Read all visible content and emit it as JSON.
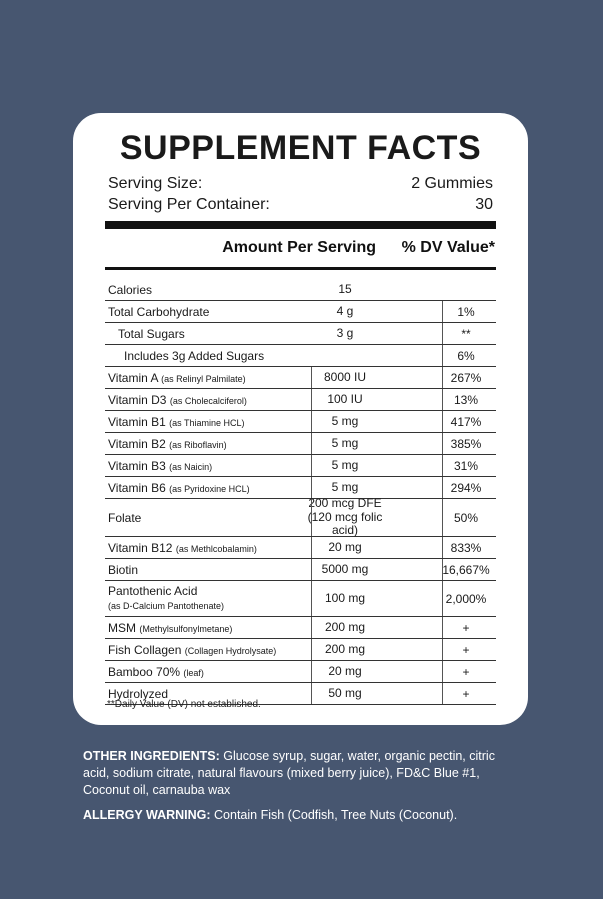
{
  "panel": {
    "title": "SUPPLEMENT FACTS",
    "serving_size_label": "Serving Size:",
    "serving_size_value": "2 Gummies",
    "servings_label": "Serving Per Container:",
    "servings_value": "30",
    "header_amount": "Amount Per Serving",
    "header_dv": "% DV Value*",
    "footnote": "**Daily Value (DV) not established."
  },
  "rows": [
    {
      "name": "Calories",
      "paren": "",
      "amount": "15",
      "dv": ""
    },
    {
      "name": "Total Carbohydrate",
      "paren": "",
      "amount": "4 g",
      "dv": "1%"
    },
    {
      "name": "Total Sugars",
      "paren": "",
      "amount": "3 g",
      "dv": "**"
    },
    {
      "name": "Includes 3g Added Sugars",
      "paren": "",
      "amount": "",
      "dv": "6%"
    },
    {
      "name": "Vitamin A",
      "paren": "(as Relinyl Palmilate)",
      "amount": "8000 IU",
      "dv": "267%"
    },
    {
      "name": "Vitamin D3",
      "paren": "(as Cholecalciferol)",
      "amount": "100 IU",
      "dv": "13%"
    },
    {
      "name": "Vitamin B1",
      "paren": "(as Thiamine HCL)",
      "amount": "5 mg",
      "dv": "417%"
    },
    {
      "name": "Vitamin B2",
      "paren": "(as Riboflavin)",
      "amount": "5 mg",
      "dv": "385%"
    },
    {
      "name": "Vitamin B3",
      "paren": "(as Naicin)",
      "amount": "5 mg",
      "dv": "31%"
    },
    {
      "name": "Vitamin B6",
      "paren": "(as Pyridoxine HCL)",
      "amount": "5 mg",
      "dv": "294%"
    },
    {
      "name": "Folate",
      "paren": "",
      "amount": "200 mcg DFE",
      "amount2": "(120 mcg folic acid)",
      "dv": "50%"
    },
    {
      "name": "Vitamin B12",
      "paren": "(as Methlcobalamin)",
      "amount": "20 mg",
      "dv": "833%"
    },
    {
      "name": "Biotin",
      "paren": "",
      "amount": "5000 mg",
      "dv": "16,667%"
    },
    {
      "name": "Pantothenic Acid",
      "paren": "",
      "subparen": "(as D-Calcium Pantothenate)",
      "amount": "100 mg",
      "dv": "2,000%"
    },
    {
      "name": "MSM",
      "paren": "(Methylsulfonylmetane)",
      "amount": "200 mg",
      "dv": "+"
    },
    {
      "name": "Fish Collagen",
      "paren": "(Collagen Hydrolysate)",
      "amount": "200 mg",
      "dv": "+"
    },
    {
      "name": "Bamboo 70%",
      "paren": "(leaf)",
      "amount": "20 mg",
      "dv": "+"
    },
    {
      "name": "Hydrolyzed",
      "paren": "",
      "amount": "50 mg",
      "dv": "+"
    }
  ],
  "footer": {
    "other_label": "OTHER INGREDIENTS:",
    "other_text": "Glucose syrup, sugar, water, organic pectin, citric acid, sodium citrate, natural flavours (mixed berry juice), FD&C Blue #1, Coconut oil, carnauba wax",
    "allergy_label": "ALLERGY WARNING:",
    "allergy_text": "Contain Fish (Codfish, Tree Nuts (Coconut)."
  }
}
